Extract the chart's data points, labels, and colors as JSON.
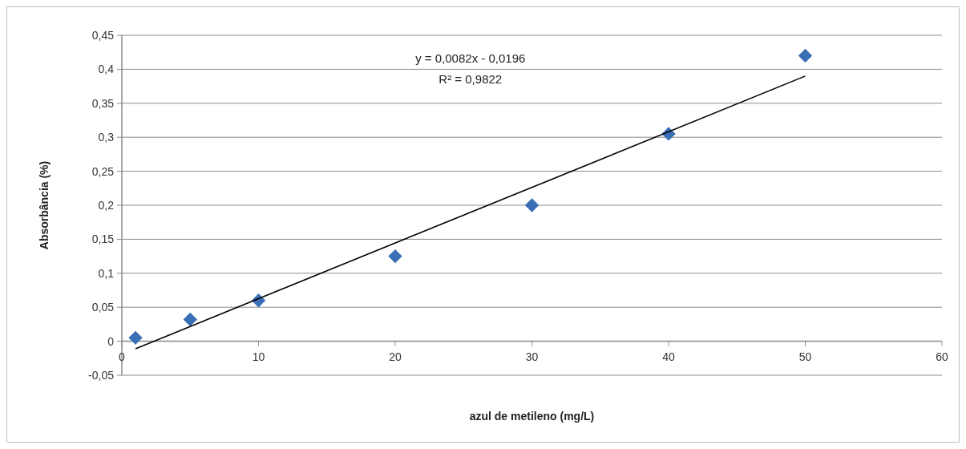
{
  "chart_data": {
    "type": "scatter",
    "xlabel": "azul de metileno (mg/L)",
    "ylabel": "Absorbância (%)",
    "x": [
      1,
      5,
      10,
      20,
      30,
      40,
      50
    ],
    "series": [
      {
        "color": "#3a6eb5",
        "marker": "diamond",
        "values": [
          0.005,
          0.032,
          0.06,
          0.125,
          0.2,
          0.305,
          0.42
        ]
      },
      {
        "type": "line",
        "color": "#000000",
        "marker": "none",
        "x": [
          1,
          50
        ],
        "values": [
          -0.011,
          0.39
        ]
      }
    ],
    "xlim": [
      0,
      60
    ],
    "xticks": [
      0,
      10,
      20,
      30,
      40,
      50,
      60
    ],
    "ylim": [
      -0.05,
      0.45
    ],
    "yticks": [
      {
        "value": -0.05,
        "label": "-0,05"
      },
      {
        "value": 0,
        "label": "0"
      },
      {
        "value": 0.05,
        "label": "0,05"
      },
      {
        "value": 0.1,
        "label": "0,1"
      },
      {
        "value": 0.15,
        "label": "0,15"
      },
      {
        "value": 0.2,
        "label": "0,2"
      },
      {
        "value": 0.25,
        "label": "0,25"
      },
      {
        "value": 0.3,
        "label": "0,3"
      },
      {
        "value": 0.35,
        "label": "0,35"
      },
      {
        "value": 0.4,
        "label": "0,4"
      },
      {
        "value": 0.45,
        "label": "0,45"
      }
    ],
    "grid": "y",
    "annotations": [
      "y = 0,0082x - 0,0196",
      "R² = 0,9822"
    ]
  }
}
